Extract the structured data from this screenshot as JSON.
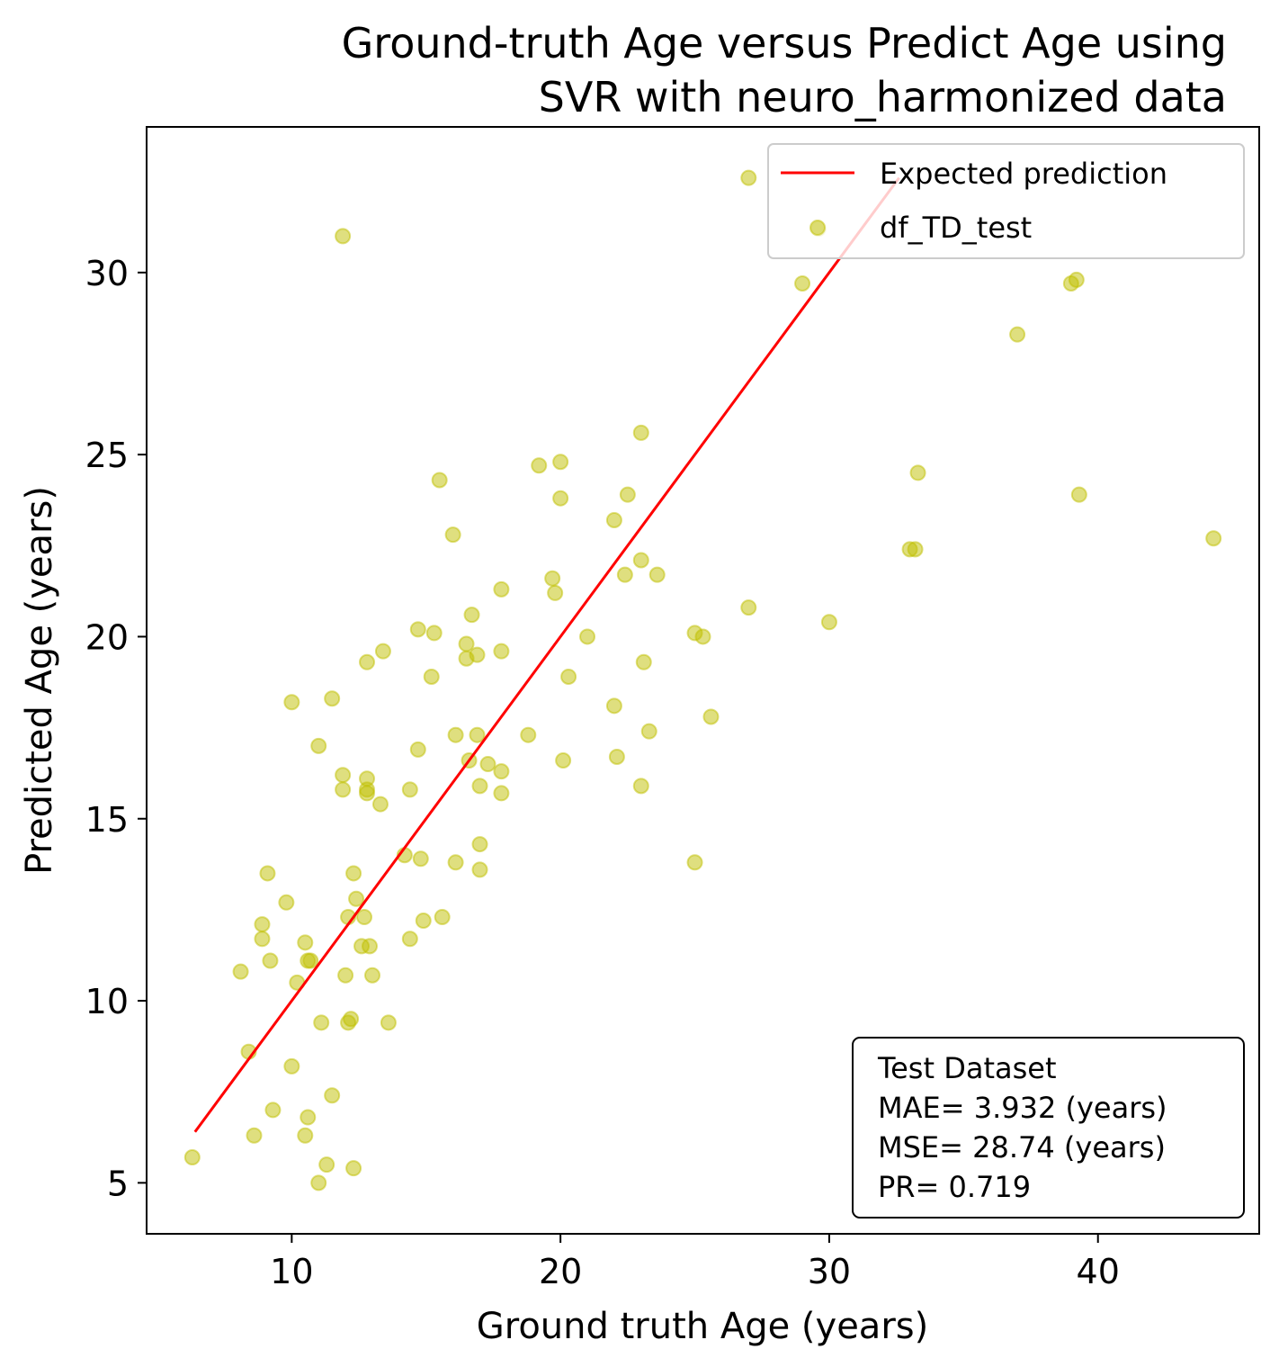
{
  "chart_data": {
    "type": "scatter",
    "title": [
      "Ground-truth Age versus Predict Age using",
      "SVR  with neuro_harmonized data"
    ],
    "xlabel": "Ground truth Age (years)",
    "ylabel": "Predicted Age (years)",
    "xlim": [
      4.6,
      46.0
    ],
    "ylim": [
      3.6,
      34.0
    ],
    "xticks": [
      10,
      20,
      30,
      40
    ],
    "yticks": [
      5,
      10,
      15,
      20,
      25,
      30
    ],
    "grid": false,
    "legend": {
      "placement": "top-right",
      "entries": [
        "Expected prediction",
        "df_TD_test"
      ]
    },
    "colors": {
      "line": "#ff0000",
      "points": "#bfbf00",
      "point_alpha": 0.5
    },
    "series": [
      {
        "name": "Expected prediction",
        "type": "line",
        "x": [
          6.4,
          32.6
        ],
        "y": [
          6.4,
          32.6
        ]
      },
      {
        "name": "df_TD_test",
        "type": "scatter",
        "x": [
          6.3,
          8.1,
          8.4,
          8.6,
          8.9,
          8.9,
          9.2,
          9.3,
          9.1,
          9.8,
          10.0,
          10.0,
          10.2,
          10.5,
          10.5,
          10.6,
          10.6,
          10.7,
          11.0,
          11.1,
          11.0,
          11.3,
          11.5,
          11.5,
          11.9,
          11.9,
          11.9,
          12.0,
          12.1,
          12.1,
          12.2,
          12.3,
          12.3,
          12.4,
          12.6,
          12.7,
          12.8,
          12.8,
          12.8,
          12.8,
          12.9,
          13.0,
          13.3,
          13.4,
          13.6,
          14.2,
          14.4,
          14.4,
          14.7,
          14.7,
          14.8,
          14.9,
          15.2,
          15.3,
          15.5,
          15.6,
          16.0,
          16.1,
          16.1,
          16.5,
          16.5,
          16.6,
          16.7,
          16.9,
          16.9,
          17.0,
          17.0,
          17.0,
          17.3,
          17.8,
          17.8,
          17.8,
          17.8,
          18.8,
          19.2,
          19.7,
          19.8,
          20.0,
          20.0,
          20.1,
          20.3,
          21.0,
          22.0,
          22.0,
          22.1,
          22.4,
          22.5,
          23.0,
          23.0,
          23.0,
          23.1,
          23.3,
          23.6,
          25.0,
          25.0,
          25.3,
          25.6,
          27.0,
          27.0,
          29.0,
          29.6,
          30.0,
          33.0,
          33.2,
          33.3,
          37.0,
          39.0,
          39.2,
          39.3,
          44.3
        ],
        "y": [
          5.7,
          10.8,
          8.6,
          6.3,
          11.7,
          12.1,
          11.1,
          7.0,
          13.5,
          12.7,
          18.2,
          8.2,
          10.5,
          11.6,
          6.3,
          11.1,
          6.8,
          11.1,
          17.0,
          9.4,
          5.0,
          5.5,
          7.4,
          18.3,
          16.2,
          15.8,
          31.0,
          10.7,
          12.3,
          9.4,
          9.5,
          13.5,
          5.4,
          12.8,
          11.5,
          12.3,
          19.3,
          15.7,
          15.8,
          16.1,
          11.5,
          10.7,
          15.4,
          19.6,
          9.4,
          14.0,
          11.7,
          15.8,
          20.2,
          16.9,
          13.9,
          12.2,
          18.9,
          20.1,
          24.3,
          12.3,
          22.8,
          17.3,
          13.8,
          19.8,
          19.4,
          16.6,
          20.6,
          17.3,
          19.5,
          15.9,
          14.3,
          13.6,
          16.5,
          21.3,
          19.6,
          16.3,
          15.7,
          17.3,
          24.7,
          21.6,
          21.2,
          23.8,
          24.8,
          16.6,
          18.9,
          20.0,
          23.2,
          18.1,
          16.7,
          21.7,
          23.9,
          25.6,
          15.9,
          22.1,
          19.3,
          17.4,
          21.7,
          20.1,
          13.8,
          20.0,
          17.8,
          32.6,
          20.8,
          29.7,
          31.2,
          20.4,
          22.4,
          22.4,
          24.5,
          28.3,
          29.7,
          29.8,
          23.9,
          22.7
        ]
      }
    ],
    "annotation": {
      "placement": "bottom-right",
      "lines": [
        "Test Dataset",
        "MAE= 3.932 (years)",
        "MSE= 28.74 (years)",
        "PR= 0.719"
      ]
    }
  }
}
